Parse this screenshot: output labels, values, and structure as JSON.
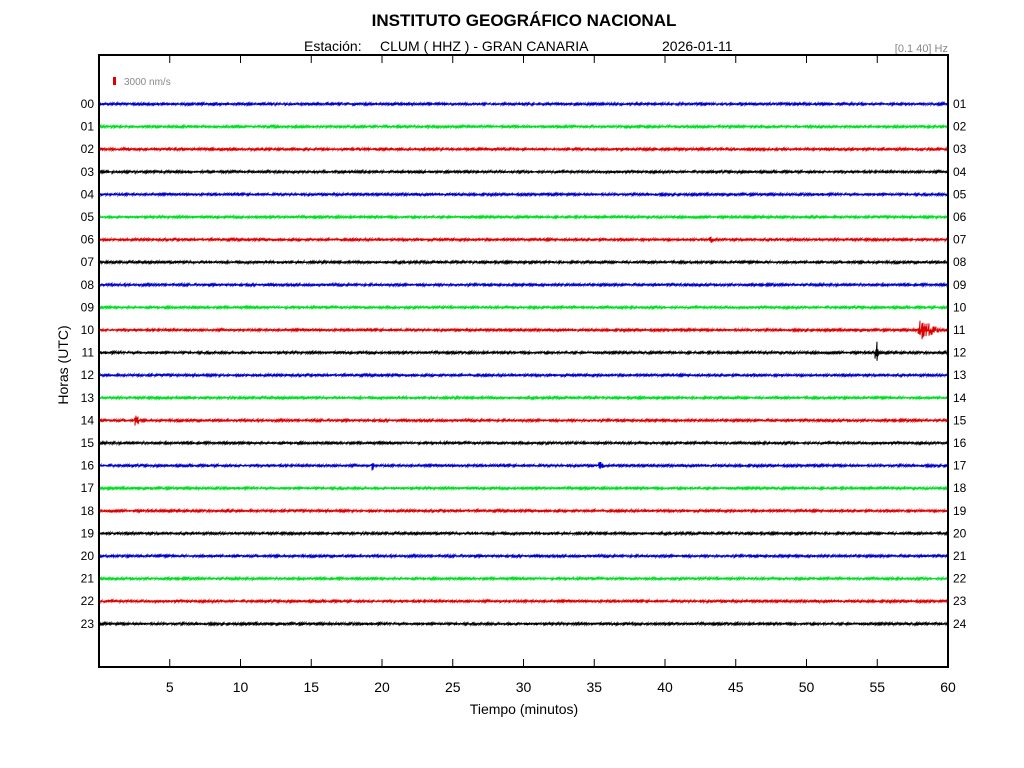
{
  "header": {
    "title": "INSTITUTO GEOGRÁFICO NACIONAL",
    "station_label": "Estación:",
    "station": "CLUM ( HHZ ) - GRAN CANARIA",
    "date": "2026-01-11",
    "filter": "[0.1 40] Hz"
  },
  "chart_data": {
    "type": "line",
    "xlabel": "Tiempo (minutos)",
    "ylabel": "Horas (UTC)",
    "xlim": [
      0,
      60
    ],
    "xticks": [
      "5",
      "10",
      "15",
      "20",
      "25",
      "30",
      "35",
      "40",
      "45",
      "50",
      "55",
      "60"
    ],
    "left_labels": [
      "00",
      "01",
      "02",
      "03",
      "04",
      "05",
      "06",
      "07",
      "08",
      "09",
      "10",
      "11",
      "12",
      "13",
      "14",
      "15",
      "16",
      "17",
      "18",
      "19",
      "20",
      "21",
      "22",
      "23"
    ],
    "right_labels": [
      "01",
      "02",
      "03",
      "04",
      "05",
      "06",
      "07",
      "08",
      "09",
      "10",
      "11",
      "12",
      "13",
      "14",
      "15",
      "16",
      "17",
      "18",
      "19",
      "20",
      "21",
      "22",
      "23",
      "24"
    ],
    "trace_colors": [
      "#0000cc",
      "#00dd22",
      "#dd0000",
      "#000000"
    ],
    "scale_bar": {
      "label": "3000 nm/s",
      "color": "#dd0000"
    },
    "events": [
      {
        "hour": 6,
        "minute": 43.2,
        "amplitude": 0.6
      },
      {
        "hour": 10,
        "minute": 58.2,
        "amplitude": 1.6,
        "duration": 1.3
      },
      {
        "hour": 11,
        "minute": 54.9,
        "amplitude": 2.5,
        "duration": 0.25
      },
      {
        "hour": 14,
        "minute": 2.6,
        "amplitude": 1.0,
        "duration": 0.3
      },
      {
        "hour": 16,
        "minute": 19.3,
        "amplitude": 0.8,
        "duration": 0.2
      },
      {
        "hour": 16,
        "minute": 35.4,
        "amplitude": 0.5,
        "duration": 0.4
      }
    ]
  }
}
